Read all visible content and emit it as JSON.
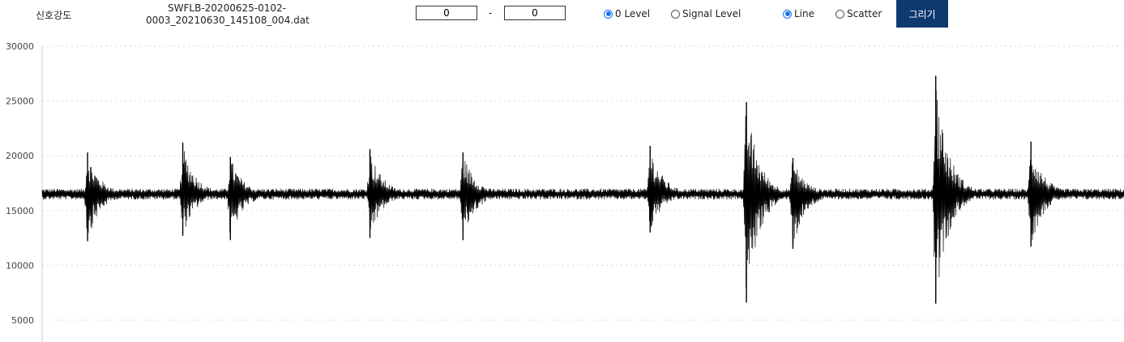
{
  "toolbar": {
    "signal_label": "신호강도",
    "filename_line1": "SWFLB-20200625-0102-",
    "filename_line2": "0003_20210630_145108_004.dat",
    "range_start": "0",
    "range_separator": "-",
    "range_end": "0",
    "level_options": [
      {
        "label": "0 Level",
        "checked": true
      },
      {
        "label": "Signal Level",
        "checked": false
      }
    ],
    "mode_options": [
      {
        "label": "Line",
        "checked": true
      },
      {
        "label": "Scatter",
        "checked": false
      }
    ],
    "draw_button": "그리기",
    "draw_button_color": "#0d3a6e"
  },
  "chart_data": {
    "type": "line",
    "title": "",
    "xlabel": "",
    "ylabel": "",
    "ylim": [
      3000,
      30000
    ],
    "yticks": [
      5000,
      10000,
      15000,
      20000,
      25000,
      30000
    ],
    "grid": "horizontal dotted",
    "baseline": 16500,
    "noise_amplitude": 500,
    "series_color": "#000000",
    "events": [
      {
        "x": 0.042,
        "max": 20300,
        "min": 12200
      },
      {
        "x": 0.13,
        "max": 21200,
        "min": 12700
      },
      {
        "x": 0.174,
        "max": 19900,
        "min": 12300
      },
      {
        "x": 0.303,
        "max": 20600,
        "min": 12500
      },
      {
        "x": 0.389,
        "max": 20300,
        "min": 12300
      },
      {
        "x": 0.562,
        "max": 20900,
        "min": 13000
      },
      {
        "x": 0.651,
        "max": 24900,
        "min": 6600
      },
      {
        "x": 0.694,
        "max": 19800,
        "min": 11500
      },
      {
        "x": 0.826,
        "max": 27300,
        "min": 6500
      },
      {
        "x": 0.914,
        "max": 21300,
        "min": 11700
      }
    ]
  }
}
